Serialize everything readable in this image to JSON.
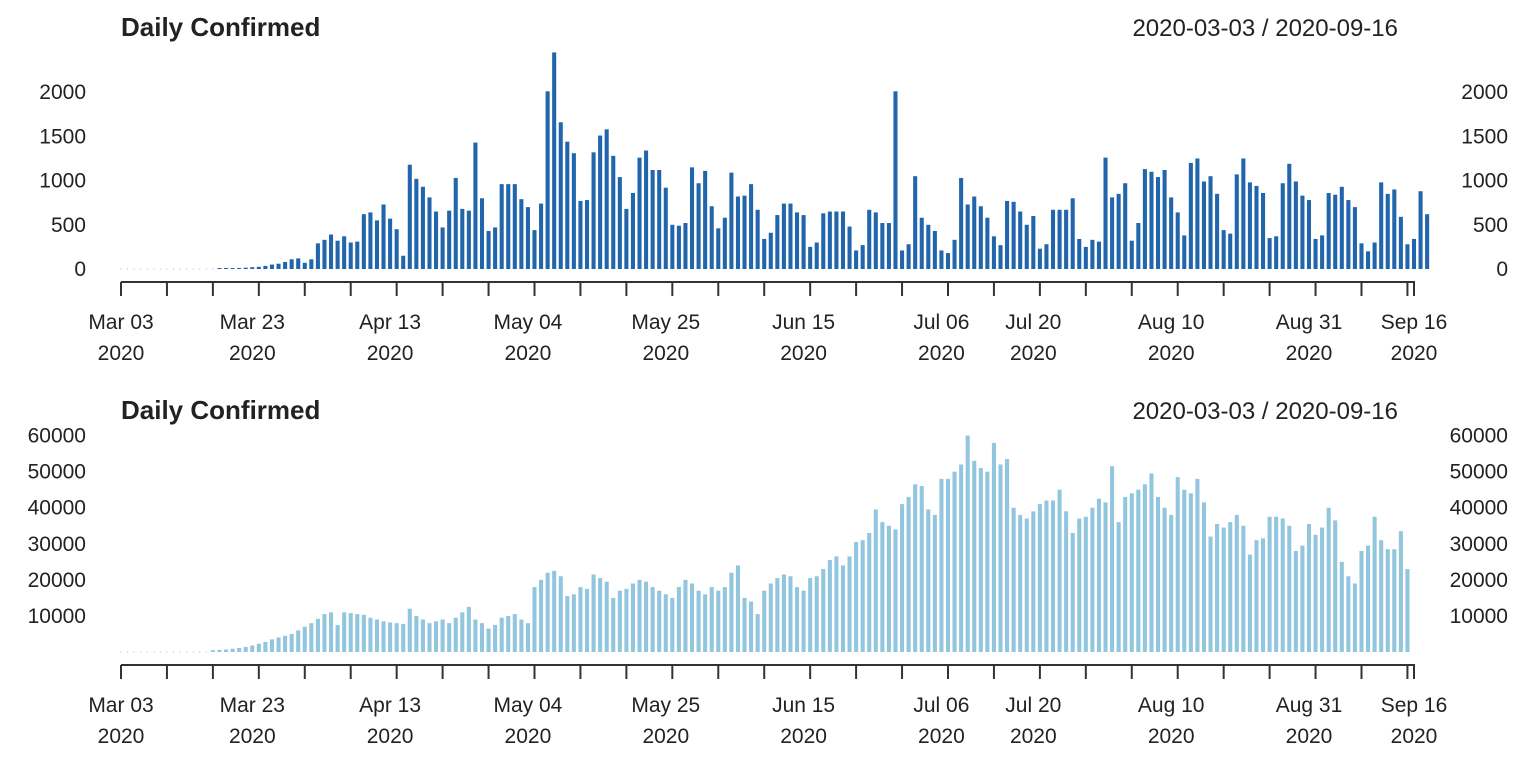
{
  "chart_data": [
    {
      "type": "bar",
      "title": "Daily Confirmed",
      "date_range": "2020-03-03 / 2020-09-16",
      "color": "#2166ac",
      "ylim": [
        0,
        2500
      ],
      "yticks": [
        0,
        500,
        1000,
        1500,
        2000
      ],
      "ytick_labels": [
        "0",
        "500",
        "1000",
        "1500",
        "2000"
      ],
      "y_axis_both_sides": true,
      "x_start": "2020-03-03",
      "x_end": "2020-09-16",
      "xtick_labels": [
        {
          "date": "2020-03-03",
          "line1": "Mar 03",
          "line2": "2020"
        },
        {
          "date": "2020-03-23",
          "line1": "Mar 23",
          "line2": "2020"
        },
        {
          "date": "2020-04-13",
          "line1": "Apr 13",
          "line2": "2020"
        },
        {
          "date": "2020-05-04",
          "line1": "May 04",
          "line2": "2020"
        },
        {
          "date": "2020-05-25",
          "line1": "May 25",
          "line2": "2020"
        },
        {
          "date": "2020-06-15",
          "line1": "Jun 15",
          "line2": "2020"
        },
        {
          "date": "2020-07-06",
          "line1": "Jul 06",
          "line2": "2020"
        },
        {
          "date": "2020-07-20",
          "line1": "Jul 20",
          "line2": "2020"
        },
        {
          "date": "2020-08-10",
          "line1": "Aug 10",
          "line2": "2020"
        },
        {
          "date": "2020-08-31",
          "line1": "Aug 31",
          "line2": "2020"
        },
        {
          "date": "2020-09-16",
          "line1": "Sep 16",
          "line2": "2020"
        }
      ],
      "values": [
        0,
        0,
        0,
        0,
        0,
        0,
        0,
        0,
        0,
        0,
        0,
        0,
        0,
        0,
        0,
        5,
        8,
        10,
        12,
        15,
        20,
        25,
        35,
        50,
        60,
        80,
        110,
        120,
        70,
        110,
        290,
        330,
        390,
        320,
        370,
        300,
        310,
        620,
        640,
        550,
        730,
        570,
        450,
        150,
        1180,
        1020,
        930,
        810,
        650,
        470,
        660,
        1030,
        680,
        660,
        1430,
        800,
        430,
        470,
        960,
        960,
        960,
        790,
        700,
        440,
        740,
        2010,
        2450,
        1660,
        1440,
        1310,
        770,
        780,
        1320,
        1510,
        1580,
        1280,
        1040,
        680,
        860,
        1260,
        1340,
        1120,
        1120,
        920,
        500,
        490,
        520,
        1150,
        970,
        1110,
        710,
        460,
        580,
        1090,
        820,
        830,
        960,
        670,
        340,
        410,
        610,
        740,
        740,
        640,
        610,
        250,
        300,
        630,
        650,
        650,
        650,
        480,
        210,
        270,
        670,
        640,
        520,
        520,
        2010,
        210,
        280,
        1050,
        580,
        500,
        430,
        210,
        180,
        330,
        1030,
        730,
        820,
        710,
        580,
        370,
        270,
        770,
        760,
        650,
        500,
        600,
        230,
        280,
        670,
        670,
        670,
        800,
        340,
        250,
        330,
        310,
        1260,
        810,
        850,
        970,
        320,
        520,
        1130,
        1100,
        1040,
        1120,
        810,
        640,
        380,
        1200,
        1250,
        990,
        1050,
        850,
        440,
        400,
        1070,
        1250,
        980,
        940,
        860,
        350,
        370,
        970,
        1190,
        990,
        830,
        780,
        340,
        380,
        860,
        840,
        930,
        780,
        700,
        290,
        200,
        300,
        980,
        850,
        900,
        590,
        280,
        340,
        880,
        620
      ]
    },
    {
      "type": "bar",
      "title": "Daily Confirmed",
      "date_range": "2020-03-03 / 2020-09-16",
      "color": "#92c5de",
      "ylim": [
        0,
        61000
      ],
      "yticks": [
        10000,
        20000,
        30000,
        40000,
        50000,
        60000
      ],
      "ytick_labels": [
        "10000",
        "20000",
        "30000",
        "40000",
        "50000",
        "60000"
      ],
      "y_axis_both_sides": true,
      "x_start": "2020-03-03",
      "x_end": "2020-09-16",
      "xtick_labels": [
        {
          "date": "2020-03-03",
          "line1": "Mar 03",
          "line2": "2020"
        },
        {
          "date": "2020-03-23",
          "line1": "Mar 23",
          "line2": "2020"
        },
        {
          "date": "2020-04-13",
          "line1": "Apr 13",
          "line2": "2020"
        },
        {
          "date": "2020-05-04",
          "line1": "May 04",
          "line2": "2020"
        },
        {
          "date": "2020-05-25",
          "line1": "May 25",
          "line2": "2020"
        },
        {
          "date": "2020-06-15",
          "line1": "Jun 15",
          "line2": "2020"
        },
        {
          "date": "2020-07-06",
          "line1": "Jul 06",
          "line2": "2020"
        },
        {
          "date": "2020-07-20",
          "line1": "Jul 20",
          "line2": "2020"
        },
        {
          "date": "2020-08-10",
          "line1": "Aug 10",
          "line2": "2020"
        },
        {
          "date": "2020-08-31",
          "line1": "Aug 31",
          "line2": "2020"
        },
        {
          "date": "2020-09-16",
          "line1": "Sep 16",
          "line2": "2020"
        }
      ],
      "values": [
        0,
        0,
        0,
        0,
        0,
        0,
        0,
        0,
        0,
        0,
        0,
        0,
        0,
        0,
        500,
        600,
        700,
        900,
        1100,
        1400,
        1800,
        2300,
        2800,
        3500,
        4000,
        4500,
        5000,
        6000,
        7000,
        8000,
        9200,
        10500,
        11000,
        7500,
        11000,
        10800,
        10500,
        10300,
        9500,
        9000,
        8500,
        8200,
        8000,
        7800,
        12000,
        10000,
        9000,
        8000,
        8500,
        9000,
        8000,
        9500,
        11000,
        12500,
        9000,
        8000,
        6500,
        7500,
        9500,
        10000,
        10500,
        9000,
        8000,
        18000,
        20000,
        22000,
        22500,
        21000,
        15500,
        16000,
        18000,
        17500,
        21500,
        20500,
        19500,
        15000,
        17000,
        17500,
        19000,
        20000,
        19500,
        18000,
        17000,
        16000,
        15000,
        18000,
        20000,
        19000,
        17000,
        16000,
        18000,
        17000,
        18000,
        22000,
        24000,
        15000,
        14000,
        10500,
        17000,
        19000,
        20500,
        21500,
        21000,
        18000,
        17000,
        20500,
        21000,
        23000,
        25500,
        26500,
        24000,
        26500,
        30500,
        31000,
        33000,
        39500,
        36000,
        35000,
        34000,
        41000,
        43000,
        46500,
        46000,
        39500,
        38000,
        48000,
        48000,
        50000,
        52000,
        60000,
        53000,
        51000,
        50000,
        58000,
        52000,
        53500,
        40000,
        38000,
        37000,
        39000,
        41000,
        42000,
        42000,
        45000,
        39000,
        33000,
        37000,
        37500,
        40000,
        42500,
        41500,
        51500,
        36000,
        43000,
        44000,
        45000,
        46500,
        49500,
        43000,
        40000,
        38000,
        48500,
        45000,
        44000,
        48000,
        41500,
        32000,
        35500,
        34500,
        36000,
        38000,
        35000,
        27000,
        31000,
        31500,
        37500,
        37500,
        37000,
        35000,
        28000,
        29500,
        35500,
        32500,
        34500,
        40000,
        36500,
        25000,
        21000,
        19000,
        28000,
        29500,
        37500,
        31000,
        28500,
        28500,
        33500,
        23000
      ]
    }
  ]
}
